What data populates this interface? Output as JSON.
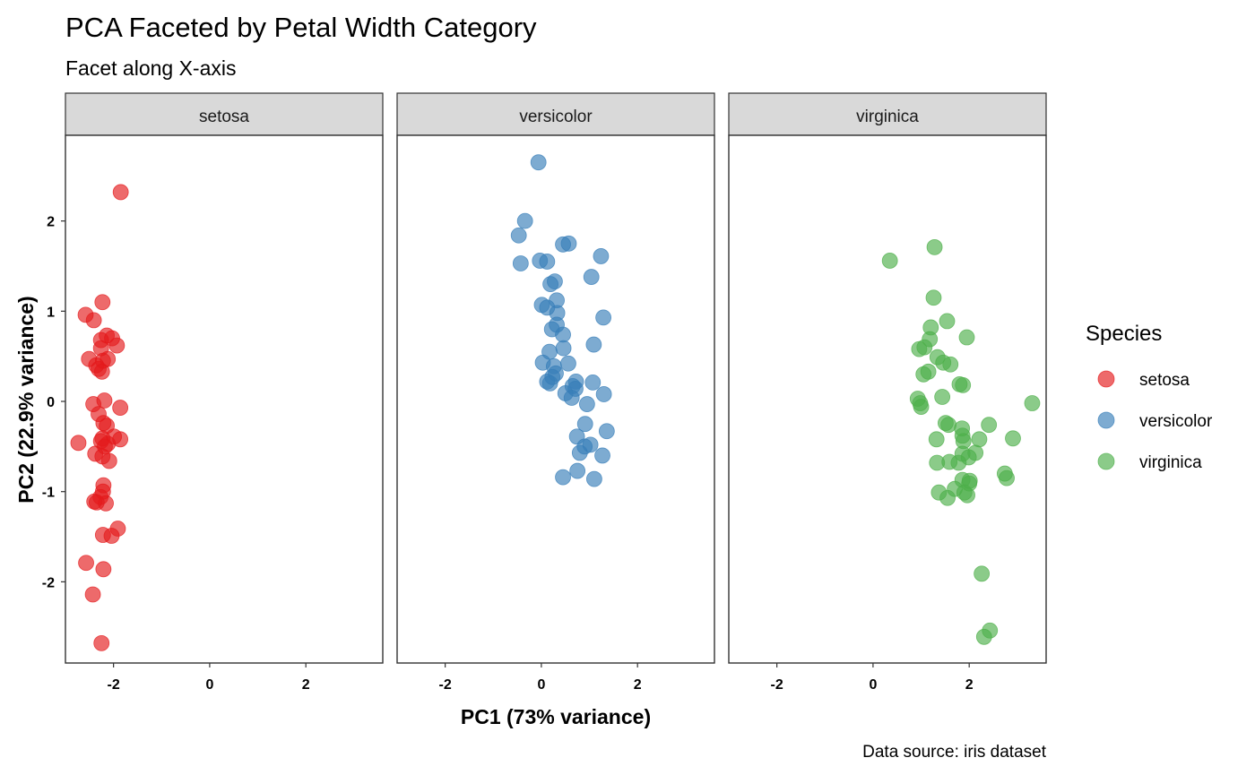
{
  "chart_data": {
    "type": "scatter",
    "title": "PCA Faceted by Petal Width Category",
    "subtitle": "Facet along X-axis",
    "xlabel": "PC1 (73% variance)",
    "ylabel": "PC2 (22.9% variance)",
    "caption": "Data source: iris dataset",
    "xlim": [
      -3.0,
      3.6
    ],
    "ylim": [
      -2.9,
      2.95
    ],
    "xticks": [
      -2,
      0,
      2
    ],
    "yticks": [
      -2,
      -1,
      0,
      1,
      2
    ],
    "legend": {
      "title": "Species",
      "placement": "right"
    },
    "facets": [
      "setosa",
      "versicolor",
      "virginica"
    ],
    "series": [
      {
        "name": "setosa",
        "color": "#E41A1C",
        "points": [
          [
            -1.85,
            2.32
          ],
          [
            -2.23,
            1.1
          ],
          [
            -2.58,
            0.96
          ],
          [
            -2.41,
            0.9
          ],
          [
            -2.14,
            0.73
          ],
          [
            -2.03,
            0.7
          ],
          [
            -2.26,
            0.68
          ],
          [
            -1.93,
            0.62
          ],
          [
            -2.26,
            0.59
          ],
          [
            -2.51,
            0.47
          ],
          [
            -2.12,
            0.47
          ],
          [
            -2.22,
            0.45
          ],
          [
            -2.36,
            0.4
          ],
          [
            -2.31,
            0.36
          ],
          [
            -2.24,
            0.33
          ],
          [
            -2.19,
            0.01
          ],
          [
            -2.42,
            -0.03
          ],
          [
            -1.86,
            -0.07
          ],
          [
            -2.31,
            -0.14
          ],
          [
            -2.21,
            -0.24
          ],
          [
            -2.14,
            -0.27
          ],
          [
            -1.99,
            -0.39
          ],
          [
            -2.23,
            -0.41
          ],
          [
            -1.86,
            -0.42
          ],
          [
            -2.73,
            -0.46
          ],
          [
            -2.26,
            -0.44
          ],
          [
            -2.12,
            -0.47
          ],
          [
            -2.18,
            -0.5
          ],
          [
            -2.38,
            -0.58
          ],
          [
            -2.23,
            -0.61
          ],
          [
            -2.09,
            -0.66
          ],
          [
            -2.21,
            -0.93
          ],
          [
            -2.22,
            -1.0
          ],
          [
            -2.27,
            -1.06
          ],
          [
            -2.4,
            -1.11
          ],
          [
            -2.35,
            -1.12
          ],
          [
            -2.16,
            -1.13
          ],
          [
            -1.91,
            -1.41
          ],
          [
            -2.04,
            -1.49
          ],
          [
            -2.22,
            -1.48
          ],
          [
            -2.57,
            -1.79
          ],
          [
            -2.21,
            -1.86
          ],
          [
            -2.43,
            -2.14
          ],
          [
            -2.25,
            -2.68
          ]
        ]
      },
      {
        "name": "versicolor",
        "color": "#377EB8",
        "points": [
          [
            -0.06,
            2.65
          ],
          [
            -0.34,
            2.0
          ],
          [
            -0.47,
            1.84
          ],
          [
            0.45,
            1.74
          ],
          [
            0.57,
            1.75
          ],
          [
            1.24,
            1.61
          ],
          [
            -0.03,
            1.56
          ],
          [
            0.12,
            1.55
          ],
          [
            -0.43,
            1.53
          ],
          [
            1.04,
            1.38
          ],
          [
            0.28,
            1.33
          ],
          [
            0.19,
            1.3
          ],
          [
            0.32,
            1.12
          ],
          [
            0.01,
            1.07
          ],
          [
            0.12,
            1.04
          ],
          [
            0.33,
            0.98
          ],
          [
            1.29,
            0.93
          ],
          [
            0.32,
            0.85
          ],
          [
            0.22,
            0.8
          ],
          [
            0.45,
            0.74
          ],
          [
            1.09,
            0.63
          ],
          [
            0.46,
            0.59
          ],
          [
            0.17,
            0.55
          ],
          [
            0.03,
            0.43
          ],
          [
            0.56,
            0.42
          ],
          [
            0.26,
            0.39
          ],
          [
            0.3,
            0.31
          ],
          [
            0.23,
            0.27
          ],
          [
            1.07,
            0.21
          ],
          [
            0.12,
            0.22
          ],
          [
            0.72,
            0.22
          ],
          [
            0.65,
            0.17
          ],
          [
            0.18,
            0.2
          ],
          [
            0.71,
            0.14
          ],
          [
            0.5,
            0.09
          ],
          [
            1.3,
            0.08
          ],
          [
            0.63,
            0.04
          ],
          [
            0.95,
            -0.03
          ],
          [
            0.91,
            -0.25
          ],
          [
            1.36,
            -0.33
          ],
          [
            0.74,
            -0.39
          ],
          [
            1.02,
            -0.48
          ],
          [
            0.9,
            -0.5
          ],
          [
            1.27,
            -0.6
          ],
          [
            0.8,
            -0.57
          ],
          [
            0.75,
            -0.77
          ],
          [
            0.45,
            -0.84
          ],
          [
            1.1,
            -0.86
          ]
        ]
      },
      {
        "name": "virginica",
        "color": "#4DAF4A",
        "points": [
          [
            1.28,
            1.71
          ],
          [
            0.35,
            1.56
          ],
          [
            1.26,
            1.15
          ],
          [
            1.54,
            0.89
          ],
          [
            1.2,
            0.82
          ],
          [
            1.95,
            0.71
          ],
          [
            1.18,
            0.69
          ],
          [
            0.96,
            0.58
          ],
          [
            1.07,
            0.6
          ],
          [
            1.34,
            0.49
          ],
          [
            1.46,
            0.43
          ],
          [
            1.61,
            0.41
          ],
          [
            1.15,
            0.33
          ],
          [
            1.05,
            0.3
          ],
          [
            1.8,
            0.19
          ],
          [
            1.87,
            0.18
          ],
          [
            1.44,
            0.05
          ],
          [
            0.93,
            0.03
          ],
          [
            0.98,
            -0.02
          ],
          [
            1.0,
            -0.06
          ],
          [
            3.31,
            -0.02
          ],
          [
            1.51,
            -0.24
          ],
          [
            1.57,
            -0.26
          ],
          [
            2.41,
            -0.26
          ],
          [
            1.85,
            -0.3
          ],
          [
            1.86,
            -0.38
          ],
          [
            1.88,
            -0.44
          ],
          [
            1.32,
            -0.42
          ],
          [
            2.21,
            -0.42
          ],
          [
            2.91,
            -0.41
          ],
          [
            2.13,
            -0.57
          ],
          [
            1.86,
            -0.58
          ],
          [
            1.99,
            -0.62
          ],
          [
            1.78,
            -0.68
          ],
          [
            1.59,
            -0.67
          ],
          [
            1.33,
            -0.68
          ],
          [
            2.74,
            -0.8
          ],
          [
            2.78,
            -0.85
          ],
          [
            1.86,
            -0.87
          ],
          [
            2.01,
            -0.88
          ],
          [
            2.0,
            -0.91
          ],
          [
            1.7,
            -0.97
          ],
          [
            1.37,
            -1.01
          ],
          [
            1.9,
            -1.01
          ],
          [
            1.96,
            -1.04
          ],
          [
            1.55,
            -1.07
          ],
          [
            2.26,
            -1.91
          ],
          [
            2.43,
            -2.54
          ],
          [
            2.31,
            -2.61
          ]
        ]
      }
    ]
  }
}
